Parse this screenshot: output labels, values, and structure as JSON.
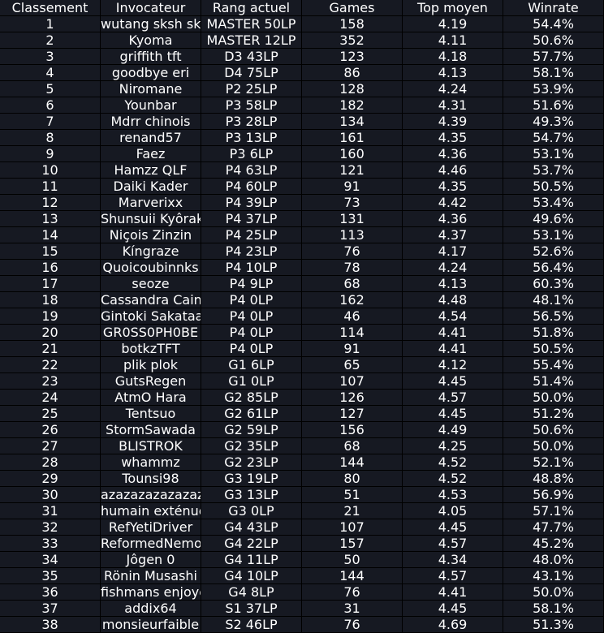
{
  "colors": {
    "background": "#000000",
    "cell": "#161922",
    "text": "#ffffff"
  },
  "table": {
    "columns": [
      "Classement",
      "Invocateur",
      "Rang actuel",
      "Games",
      "Top moyen",
      "Winrate"
    ],
    "rows": [
      [
        "1",
        "wutang sksh sks",
        "MASTER 50LP",
        "158",
        "4.19",
        "54.4%"
      ],
      [
        "2",
        "Kyoma",
        "MASTER 12LP",
        "352",
        "4.11",
        "50.6%"
      ],
      [
        "3",
        "griffith tft",
        "D3 43LP",
        "123",
        "4.18",
        "57.7%"
      ],
      [
        "4",
        "goodbye eri",
        "D4 75LP",
        "86",
        "4.13",
        "58.1%"
      ],
      [
        "5",
        "Niromane",
        "P2 25LP",
        "128",
        "4.24",
        "53.9%"
      ],
      [
        "6",
        "Younbar",
        "P3 58LP",
        "182",
        "4.31",
        "51.6%"
      ],
      [
        "7",
        "Mdrr chinois",
        "P3 28LP",
        "134",
        "4.39",
        "49.3%"
      ],
      [
        "8",
        "renand57",
        "P3 13LP",
        "161",
        "4.35",
        "54.7%"
      ],
      [
        "9",
        "Faez",
        "P3 6LP",
        "160",
        "4.36",
        "53.1%"
      ],
      [
        "10",
        "Hamzz QLF",
        "P4 63LP",
        "121",
        "4.46",
        "53.7%"
      ],
      [
        "11",
        "Daiki Kader",
        "P4 60LP",
        "91",
        "4.35",
        "50.5%"
      ],
      [
        "12",
        "Marverixx",
        "P4 39LP",
        "73",
        "4.42",
        "53.4%"
      ],
      [
        "13",
        "Shunsuii Kyôrak",
        "P4 37LP",
        "131",
        "4.36",
        "49.6%"
      ],
      [
        "14",
        "Niçois Zinzin",
        "P4 25LP",
        "113",
        "4.37",
        "53.1%"
      ],
      [
        "15",
        "Kíngraze",
        "P4 23LP",
        "76",
        "4.17",
        "52.6%"
      ],
      [
        "16",
        "Quoicoubinnks",
        "P4 10LP",
        "78",
        "4.24",
        "56.4%"
      ],
      [
        "17",
        "seoze",
        "P4 9LP",
        "68",
        "4.13",
        "60.3%"
      ],
      [
        "18",
        "Cassandra Cain",
        "P4 0LP",
        "162",
        "4.48",
        "48.1%"
      ],
      [
        "19",
        "Gintoki Sakataa",
        "P4 0LP",
        "46",
        "4.54",
        "56.5%"
      ],
      [
        "20",
        "GR0SS0PH0BE",
        "P4 0LP",
        "114",
        "4.41",
        "51.8%"
      ],
      [
        "21",
        "botkzTFT",
        "P4 0LP",
        "91",
        "4.41",
        "50.5%"
      ],
      [
        "22",
        "plik plok",
        "G1 6LP",
        "65",
        "4.12",
        "55.4%"
      ],
      [
        "23",
        "GutsRegen",
        "G1 0LP",
        "107",
        "4.45",
        "51.4%"
      ],
      [
        "24",
        "AtmO Hara",
        "G2 85LP",
        "126",
        "4.57",
        "50.0%"
      ],
      [
        "25",
        "Tentsuo",
        "G2 61LP",
        "127",
        "4.45",
        "51.2%"
      ],
      [
        "26",
        "StormSawada",
        "G2 59LP",
        "156",
        "4.49",
        "50.6%"
      ],
      [
        "27",
        "BLISTROK",
        "G2 35LP",
        "68",
        "4.25",
        "50.0%"
      ],
      [
        "28",
        "whammz",
        "G2 23LP",
        "144",
        "4.52",
        "52.1%"
      ],
      [
        "29",
        "Tounsi98",
        "G3 19LP",
        "80",
        "4.52",
        "48.8%"
      ],
      [
        "30",
        "azazazazazazaz",
        "G3 13LP",
        "51",
        "4.53",
        "56.9%"
      ],
      [
        "31",
        "humain exténue",
        "G3 0LP",
        "21",
        "4.05",
        "57.1%"
      ],
      [
        "32",
        "RefYetiDriver",
        "G4 43LP",
        "107",
        "4.45",
        "47.7%"
      ],
      [
        "33",
        "ReformedNemo",
        "G4 22LP",
        "157",
        "4.57",
        "45.2%"
      ],
      [
        "34",
        "Jôgen 0",
        "G4 11LP",
        "50",
        "4.34",
        "48.0%"
      ],
      [
        "35",
        "Rönin Musashi",
        "G4 10LP",
        "144",
        "4.57",
        "43.1%"
      ],
      [
        "36",
        "fishmans enjoye",
        "G4 8LP",
        "76",
        "4.41",
        "50.0%"
      ],
      [
        "37",
        "addix64",
        "S1 37LP",
        "31",
        "4.45",
        "58.1%"
      ],
      [
        "38",
        "monsieurfaible",
        "S2 46LP",
        "76",
        "4.69",
        "51.3%"
      ]
    ]
  }
}
